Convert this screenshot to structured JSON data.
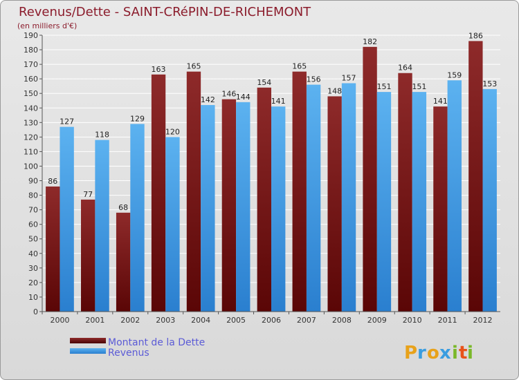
{
  "chart_data": {
    "type": "bar",
    "title": "Revenus/Dette - SAINT-CRéPIN-DE-RICHEMONT",
    "subtitle": "(en milliers d'€)",
    "categories": [
      "2000",
      "2001",
      "2002",
      "2003",
      "2004",
      "2005",
      "2006",
      "2007",
      "2008",
      "2009",
      "2010",
      "2011",
      "2012"
    ],
    "series": [
      {
        "name": "Montant de la Dette",
        "color": "#7a1a1a",
        "values": [
          86,
          77,
          68,
          163,
          165,
          146,
          154,
          165,
          148,
          182,
          164,
          141,
          186
        ]
      },
      {
        "name": "Revenus",
        "color": "#3d9be8",
        "values": [
          127,
          118,
          129,
          120,
          142,
          144,
          141,
          156,
          157,
          151,
          151,
          159,
          153
        ]
      }
    ],
    "ylim": [
      0,
      190
    ],
    "yticks": [
      0,
      10,
      20,
      30,
      40,
      50,
      60,
      70,
      80,
      90,
      100,
      110,
      120,
      130,
      140,
      150,
      160,
      170,
      180,
      190
    ],
    "grid": true,
    "legend_position": "bottom-left"
  },
  "logo": {
    "letters": [
      "P",
      "r",
      "o",
      "x",
      "i",
      "t",
      "i"
    ],
    "colors": [
      "#e8a21a",
      "#3a9de0",
      "#e8a21a",
      "#3a9de0",
      "#7ab829",
      "#e8531a",
      "#7ab829"
    ]
  }
}
